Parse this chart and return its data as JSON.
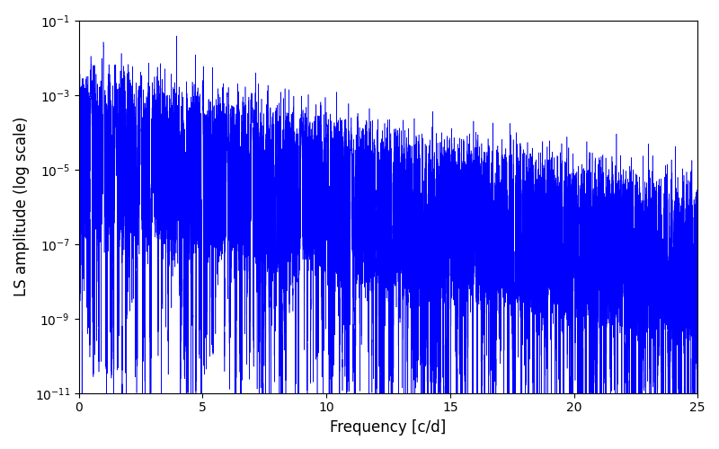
{
  "title": "",
  "xlabel": "Frequency [c/d]",
  "ylabel": "LS amplitude (log scale)",
  "xlim": [
    0,
    25
  ],
  "ylim_log": [
    -11,
    -1
  ],
  "freq_min": 0.0,
  "freq_max": 25.0,
  "n_points": 100000,
  "line_color": "#0000FF",
  "line_width": 0.4,
  "background_color": "#ffffff",
  "figsize": [
    8.0,
    5.0
  ],
  "dpi": 100,
  "seed": 42
}
